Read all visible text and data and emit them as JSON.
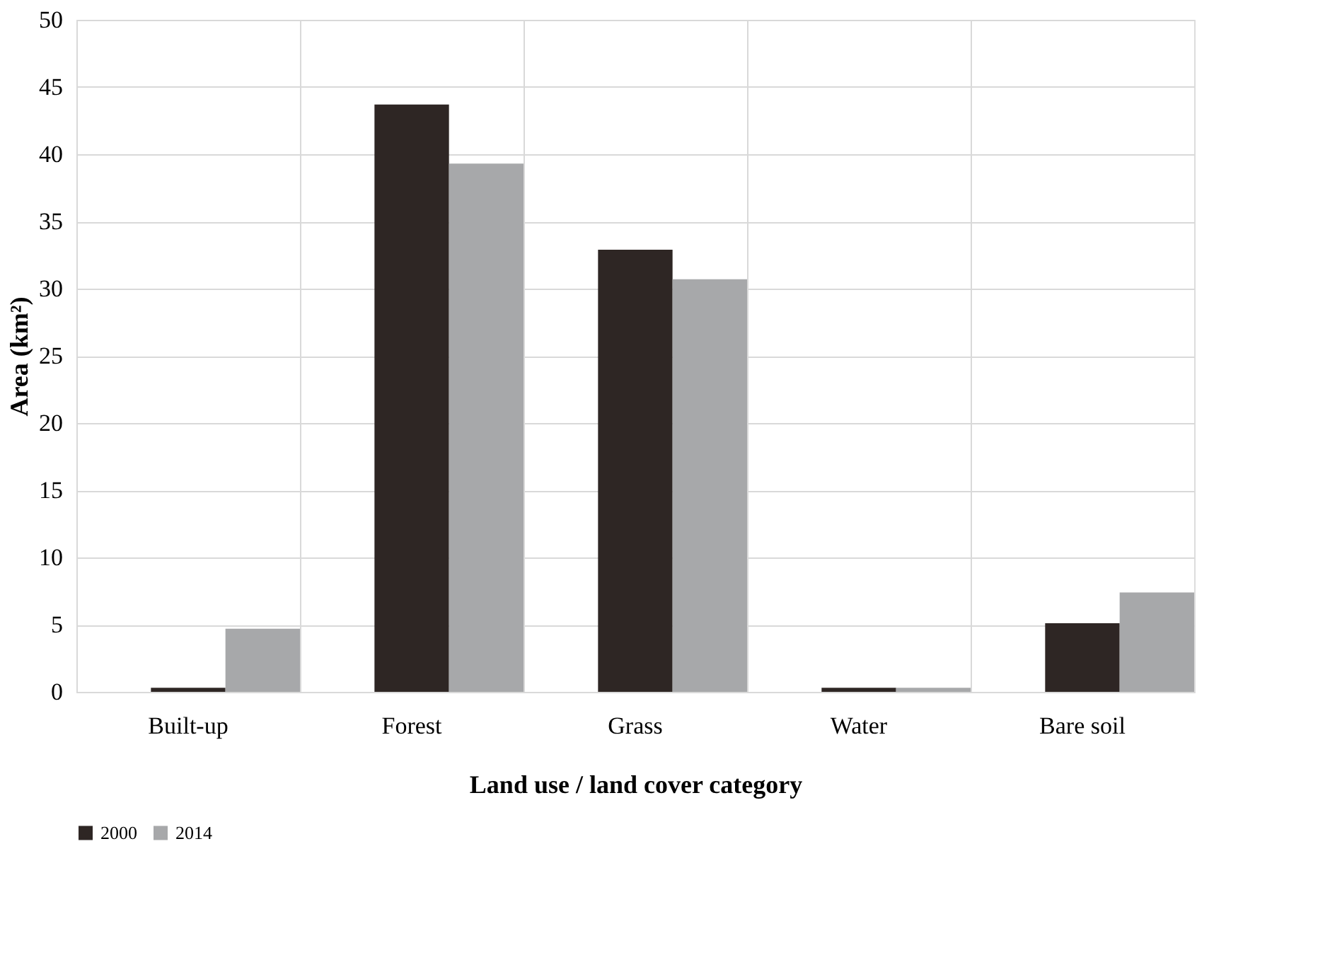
{
  "chart_data": {
    "type": "bar",
    "xlabel": "Land use / land cover category",
    "ylabel": "Area (km²)",
    "categories": [
      "Built-up",
      "Forest",
      "Grass",
      "Water",
      "Bare soil"
    ],
    "series": [
      {
        "name": "2000",
        "color": "#2e2624",
        "values": [
          0.3,
          43.7,
          32.9,
          0.3,
          5.1
        ]
      },
      {
        "name": "2014",
        "color": "#a7a8aa",
        "values": [
          4.7,
          39.3,
          30.7,
          0.3,
          7.4
        ]
      }
    ],
    "ylim": [
      0,
      50
    ],
    "yticks": [
      0,
      5,
      10,
      15,
      20,
      25,
      30,
      35,
      40,
      45,
      50
    ],
    "grid": true,
    "legend": "bottom"
  }
}
